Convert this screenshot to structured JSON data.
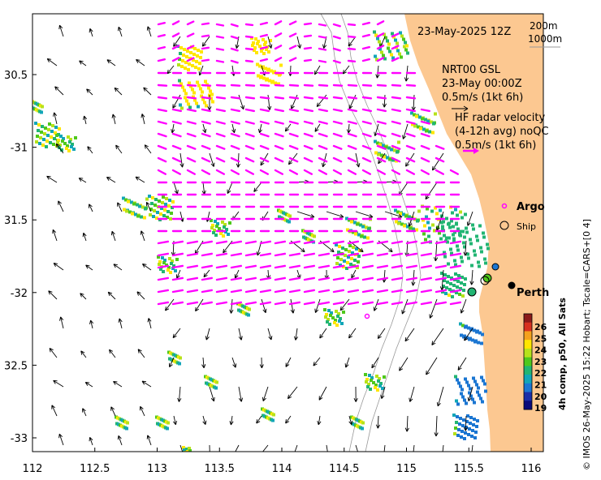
{
  "map": {
    "lon_range": [
      112.0,
      116.0
    ],
    "lat_range": [
      -33.1,
      -30.1
    ],
    "lon_ticks": [
      "112",
      "112.5",
      "113",
      "113.5",
      "114",
      "114.5",
      "115",
      "115.5",
      "116"
    ],
    "lat_ticks": [
      "30.5",
      "-31",
      "31.5",
      "-32",
      "32.5",
      "-33"
    ],
    "land_color": "#fcc891",
    "ocean_color": "#ffffff",
    "contour_color": "#999999"
  },
  "header": {
    "date": "23-May-2025 12Z",
    "depth_top": "200m",
    "depth_bottom": "1000m"
  },
  "legend_model": {
    "line1": "NRT00 GSL",
    "line2": "23-May 00:00Z",
    "line3": "0.5m/s (1kt 6h)"
  },
  "legend_radar": {
    "line1": "HF radar velocity",
    "line2": "(4-12h avg) noQC",
    "line3": "0.5m/s (1kt 6h)",
    "color": "#ff00ff"
  },
  "markers": {
    "argo_label": "Argo",
    "ship_label": "Ship",
    "city_label": "Perth"
  },
  "colorbar": {
    "ticks": [
      "26",
      "25",
      "24",
      "23",
      "22",
      "21",
      "20",
      "19"
    ],
    "label": "4h comp, p50, All Sats",
    "colors": [
      "#8b1a1a",
      "#d7301f",
      "#f4a11d",
      "#ffe600",
      "#b6e21a",
      "#4fc81c",
      "#22b573",
      "#12a6b8",
      "#1b76d2",
      "#1a2ea8",
      "#0a0a7a"
    ]
  },
  "side_text": "© IMOS 26-May-2025 15:22 Hobart; Tscale=CARS+[0 4]"
}
